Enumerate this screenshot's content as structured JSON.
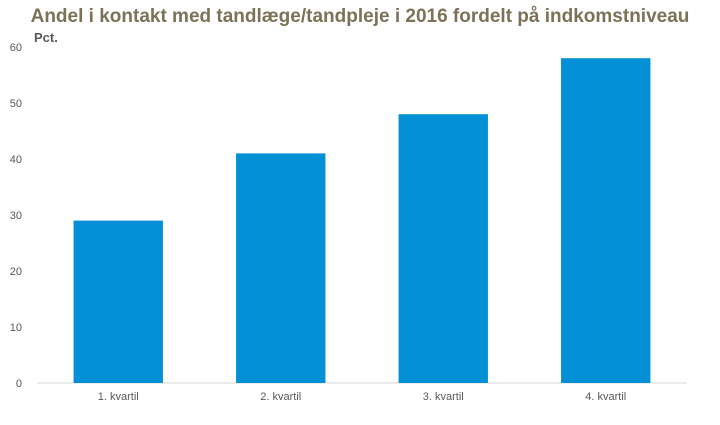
{
  "chart_data": {
    "type": "bar",
    "title": "Andel i kontakt med tandlæge/tandpleje i 2016  fordelt på indkomstniveau",
    "ylabel": "Pct.",
    "xlabel": "",
    "categories": [
      "1. kvartil",
      "2. kvartil",
      "3. kvartil",
      "4. kvartil"
    ],
    "values": [
      29,
      41,
      48,
      58
    ],
    "ylim": [
      0,
      60
    ],
    "yticks": [
      0,
      10,
      20,
      30,
      40,
      50,
      60
    ],
    "grid": false,
    "bar_color": "#0490d6",
    "title_color": "#7b7257"
  }
}
